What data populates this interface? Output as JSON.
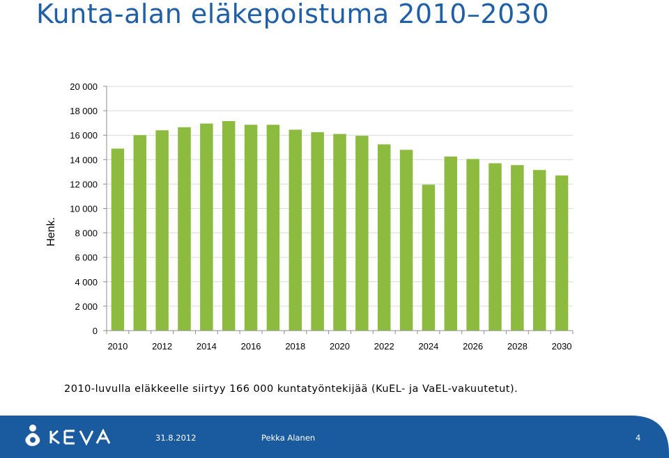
{
  "title": "Kunta-alan eläkepoistuma 2010–2030",
  "caption": "2010-luvulla eläkkeelle siirtyy 166 000 kuntatyöntekijää (KuEL- ja VaEL-vakuutetut).",
  "footer": {
    "logo_text": "KEVA",
    "date": "31.8.2012",
    "author": "Pekka Alanen",
    "page": "4"
  },
  "colors": {
    "title": "#1f5fa6",
    "bar": "#8dbb3f",
    "footer": "#1a5a9e"
  },
  "chart_data": {
    "type": "bar",
    "xlabel": "",
    "ylabel": "Henk.",
    "ylim": [
      0,
      20000
    ],
    "grid": true,
    "yticks": [
      "0",
      "2 000",
      "4 000",
      "6 000",
      "8 000",
      "10 000",
      "12 000",
      "14 000",
      "16 000",
      "18 000",
      "20 000"
    ],
    "xtick_labels": [
      "2010",
      "2012",
      "2014",
      "2016",
      "2018",
      "2020",
      "2022",
      "2024",
      "2026",
      "2028",
      "2030"
    ],
    "categories": [
      "2010",
      "2011",
      "2012",
      "2013",
      "2014",
      "2015",
      "2016",
      "2017",
      "2018",
      "2019",
      "2020",
      "2021",
      "2022",
      "2023",
      "2024",
      "2025",
      "2026",
      "2027",
      "2028",
      "2029",
      "2030"
    ],
    "values": [
      14900,
      16000,
      16400,
      16650,
      16950,
      17150,
      16850,
      16850,
      16450,
      16250,
      16100,
      15950,
      15250,
      14800,
      11950,
      14250,
      14050,
      13700,
      13550,
      13150,
      12700
    ]
  }
}
